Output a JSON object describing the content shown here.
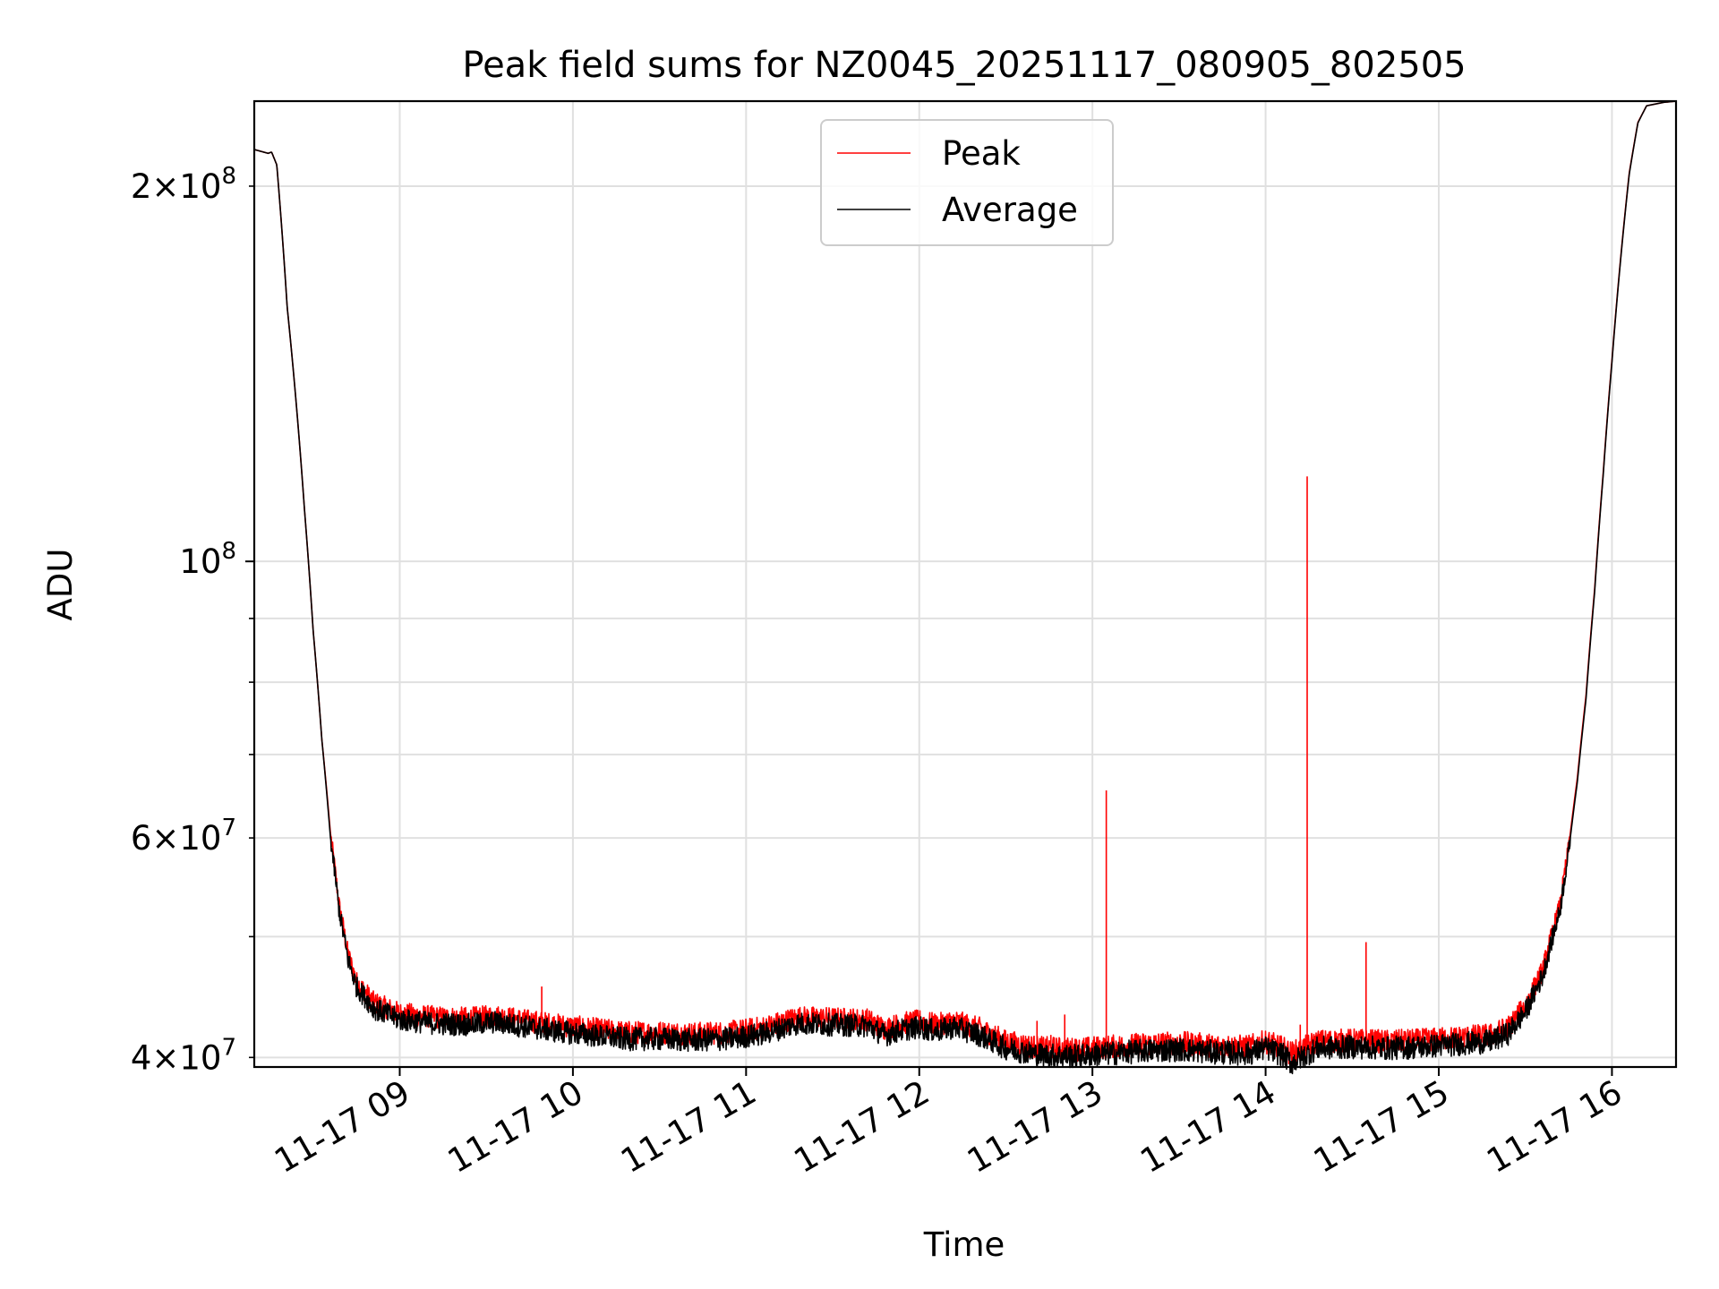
{
  "chart_data": {
    "type": "line",
    "title": "Peak field sums for NZ0045_20251117_080905_802505",
    "xlabel": "Time",
    "ylabel": "ADU",
    "x_unit": "hours (decimal, 2025-11-17)",
    "xlim": [
      8.16,
      16.37
    ],
    "yscale": "log",
    "ylim": [
      39300000,
      234000000
    ],
    "grid": true,
    "legend_location": "upper center",
    "x_ticks": [
      {
        "value": 9,
        "label": "11-17 09"
      },
      {
        "value": 10,
        "label": "11-17 10"
      },
      {
        "value": 11,
        "label": "11-17 11"
      },
      {
        "value": 12,
        "label": "11-17 12"
      },
      {
        "value": 13,
        "label": "11-17 13"
      },
      {
        "value": 14,
        "label": "11-17 14"
      },
      {
        "value": 15,
        "label": "11-17 15"
      },
      {
        "value": 16,
        "label": "11-17 16"
      }
    ],
    "y_ticks_major": [
      {
        "value": 100000000,
        "mantissa": "",
        "exponent": "8"
      }
    ],
    "y_ticks_minor": [
      {
        "value": 40000000,
        "mantissa": "4",
        "exponent": "7",
        "labeled": true
      },
      {
        "value": 50000000,
        "labeled": false
      },
      {
        "value": 60000000,
        "mantissa": "6",
        "exponent": "7",
        "labeled": true
      },
      {
        "value": 70000000,
        "labeled": false
      },
      {
        "value": 80000000,
        "labeled": false
      },
      {
        "value": 90000000,
        "labeled": false
      },
      {
        "value": 200000000,
        "mantissa": "2",
        "exponent": "8",
        "labeled": true
      }
    ],
    "series": [
      {
        "name": "Peak",
        "color": "#ff0000",
        "baseline": [
          [
            8.16,
            214000000
          ],
          [
            8.24,
            212500000
          ],
          [
            8.26,
            213000000
          ],
          [
            8.29,
            208000000
          ],
          [
            8.35,
            160000000
          ],
          [
            8.4,
            135000000
          ],
          [
            8.45,
            110000000
          ],
          [
            8.5,
            88000000
          ],
          [
            8.55,
            72000000
          ],
          [
            8.6,
            60500000
          ],
          [
            8.65,
            53000000
          ],
          [
            8.7,
            48500000
          ],
          [
            8.75,
            46000000
          ],
          [
            8.85,
            44300000
          ],
          [
            9.0,
            43400000
          ],
          [
            9.2,
            43100000
          ],
          [
            9.4,
            43000000
          ],
          [
            9.55,
            43200000
          ],
          [
            9.7,
            42900000
          ],
          [
            9.9,
            42500000
          ],
          [
            10.1,
            42200000
          ],
          [
            10.3,
            41900000
          ],
          [
            10.5,
            41900000
          ],
          [
            10.7,
            41800000
          ],
          [
            10.9,
            41900000
          ],
          [
            11.1,
            42300000
          ],
          [
            11.3,
            43100000
          ],
          [
            11.5,
            43000000
          ],
          [
            11.7,
            42900000
          ],
          [
            11.8,
            42200000
          ],
          [
            11.9,
            42600000
          ],
          [
            12.0,
            42800000
          ],
          [
            12.1,
            42500000
          ],
          [
            12.2,
            42800000
          ],
          [
            12.35,
            42200000
          ],
          [
            12.5,
            41200000
          ],
          [
            12.7,
            40700000
          ],
          [
            12.9,
            40600000
          ],
          [
            13.1,
            40800000
          ],
          [
            13.3,
            41000000
          ],
          [
            13.5,
            41100000
          ],
          [
            13.7,
            40900000
          ],
          [
            13.9,
            40800000
          ],
          [
            14.0,
            41200000
          ],
          [
            14.1,
            40700000
          ],
          [
            14.15,
            40300000
          ],
          [
            14.3,
            41200000
          ],
          [
            14.5,
            41300000
          ],
          [
            14.7,
            41200000
          ],
          [
            14.9,
            41300000
          ],
          [
            15.1,
            41500000
          ],
          [
            15.3,
            41700000
          ],
          [
            15.4,
            42300000
          ],
          [
            15.5,
            44000000
          ],
          [
            15.6,
            47000000
          ],
          [
            15.7,
            53000000
          ],
          [
            15.75,
            59000000
          ],
          [
            15.8,
            67000000
          ],
          [
            15.85,
            78000000
          ],
          [
            15.9,
            95000000
          ],
          [
            15.95,
            118000000
          ],
          [
            16.0,
            145000000
          ],
          [
            16.05,
            175000000
          ],
          [
            16.1,
            205000000
          ],
          [
            16.15,
            225000000
          ],
          [
            16.2,
            232000000
          ],
          [
            16.3,
            233500000
          ],
          [
            16.37,
            234000000
          ]
        ],
        "noise_amplitude": 900000,
        "spikes": [
          [
            9.82,
            45600000
          ],
          [
            12.68,
            42800000
          ],
          [
            12.76,
            41700000
          ],
          [
            12.84,
            43300000
          ],
          [
            12.9,
            41400000
          ],
          [
            13.08,
            65500000
          ],
          [
            14.2,
            42500000
          ],
          [
            14.24,
            117000000
          ],
          [
            14.58,
            49500000
          ],
          [
            14.8,
            42000000
          ]
        ]
      },
      {
        "name": "Average",
        "color": "#000000",
        "baseline": [
          [
            8.16,
            214000000
          ],
          [
            8.24,
            212500000
          ],
          [
            8.26,
            213000000
          ],
          [
            8.29,
            208000000
          ],
          [
            8.35,
            160000000
          ],
          [
            8.4,
            135000000
          ],
          [
            8.45,
            110000000
          ],
          [
            8.5,
            88000000
          ],
          [
            8.55,
            72000000
          ],
          [
            8.6,
            60000000
          ],
          [
            8.65,
            52500000
          ],
          [
            8.7,
            48000000
          ],
          [
            8.75,
            45600000
          ],
          [
            8.85,
            43800000
          ],
          [
            9.0,
            42900000
          ],
          [
            9.2,
            42600000
          ],
          [
            9.4,
            42500000
          ],
          [
            9.55,
            42700000
          ],
          [
            9.7,
            42400000
          ],
          [
            9.9,
            42000000
          ],
          [
            10.1,
            41700000
          ],
          [
            10.3,
            41400000
          ],
          [
            10.5,
            41400000
          ],
          [
            10.7,
            41300000
          ],
          [
            10.9,
            41400000
          ],
          [
            11.1,
            41800000
          ],
          [
            11.3,
            42600000
          ],
          [
            11.5,
            42500000
          ],
          [
            11.7,
            42400000
          ],
          [
            11.8,
            41700000
          ],
          [
            11.9,
            42100000
          ],
          [
            12.0,
            42300000
          ],
          [
            12.1,
            42000000
          ],
          [
            12.2,
            42300000
          ],
          [
            12.35,
            41700000
          ],
          [
            12.5,
            40700000
          ],
          [
            12.7,
            40200000
          ],
          [
            12.9,
            40100000
          ],
          [
            13.1,
            40300000
          ],
          [
            13.3,
            40500000
          ],
          [
            13.5,
            40600000
          ],
          [
            13.7,
            40400000
          ],
          [
            13.9,
            40300000
          ],
          [
            14.0,
            40700000
          ],
          [
            14.1,
            40200000
          ],
          [
            14.15,
            39600000
          ],
          [
            14.3,
            40700000
          ],
          [
            14.5,
            40800000
          ],
          [
            14.7,
            40700000
          ],
          [
            14.9,
            40800000
          ],
          [
            15.1,
            41000000
          ],
          [
            15.3,
            41200000
          ],
          [
            15.4,
            41800000
          ],
          [
            15.5,
            43500000
          ],
          [
            15.6,
            46500000
          ],
          [
            15.7,
            52500000
          ],
          [
            15.75,
            58500000
          ],
          [
            15.8,
            66500000
          ],
          [
            15.85,
            77500000
          ],
          [
            15.9,
            94500000
          ],
          [
            15.95,
            117500000
          ],
          [
            16.0,
            144500000
          ],
          [
            16.05,
            174500000
          ],
          [
            16.1,
            204500000
          ],
          [
            16.15,
            224800000
          ],
          [
            16.2,
            232000000
          ],
          [
            16.3,
            233500000
          ],
          [
            16.37,
            234000000
          ]
        ],
        "noise_amplitude": 900000,
        "spikes": []
      }
    ]
  }
}
